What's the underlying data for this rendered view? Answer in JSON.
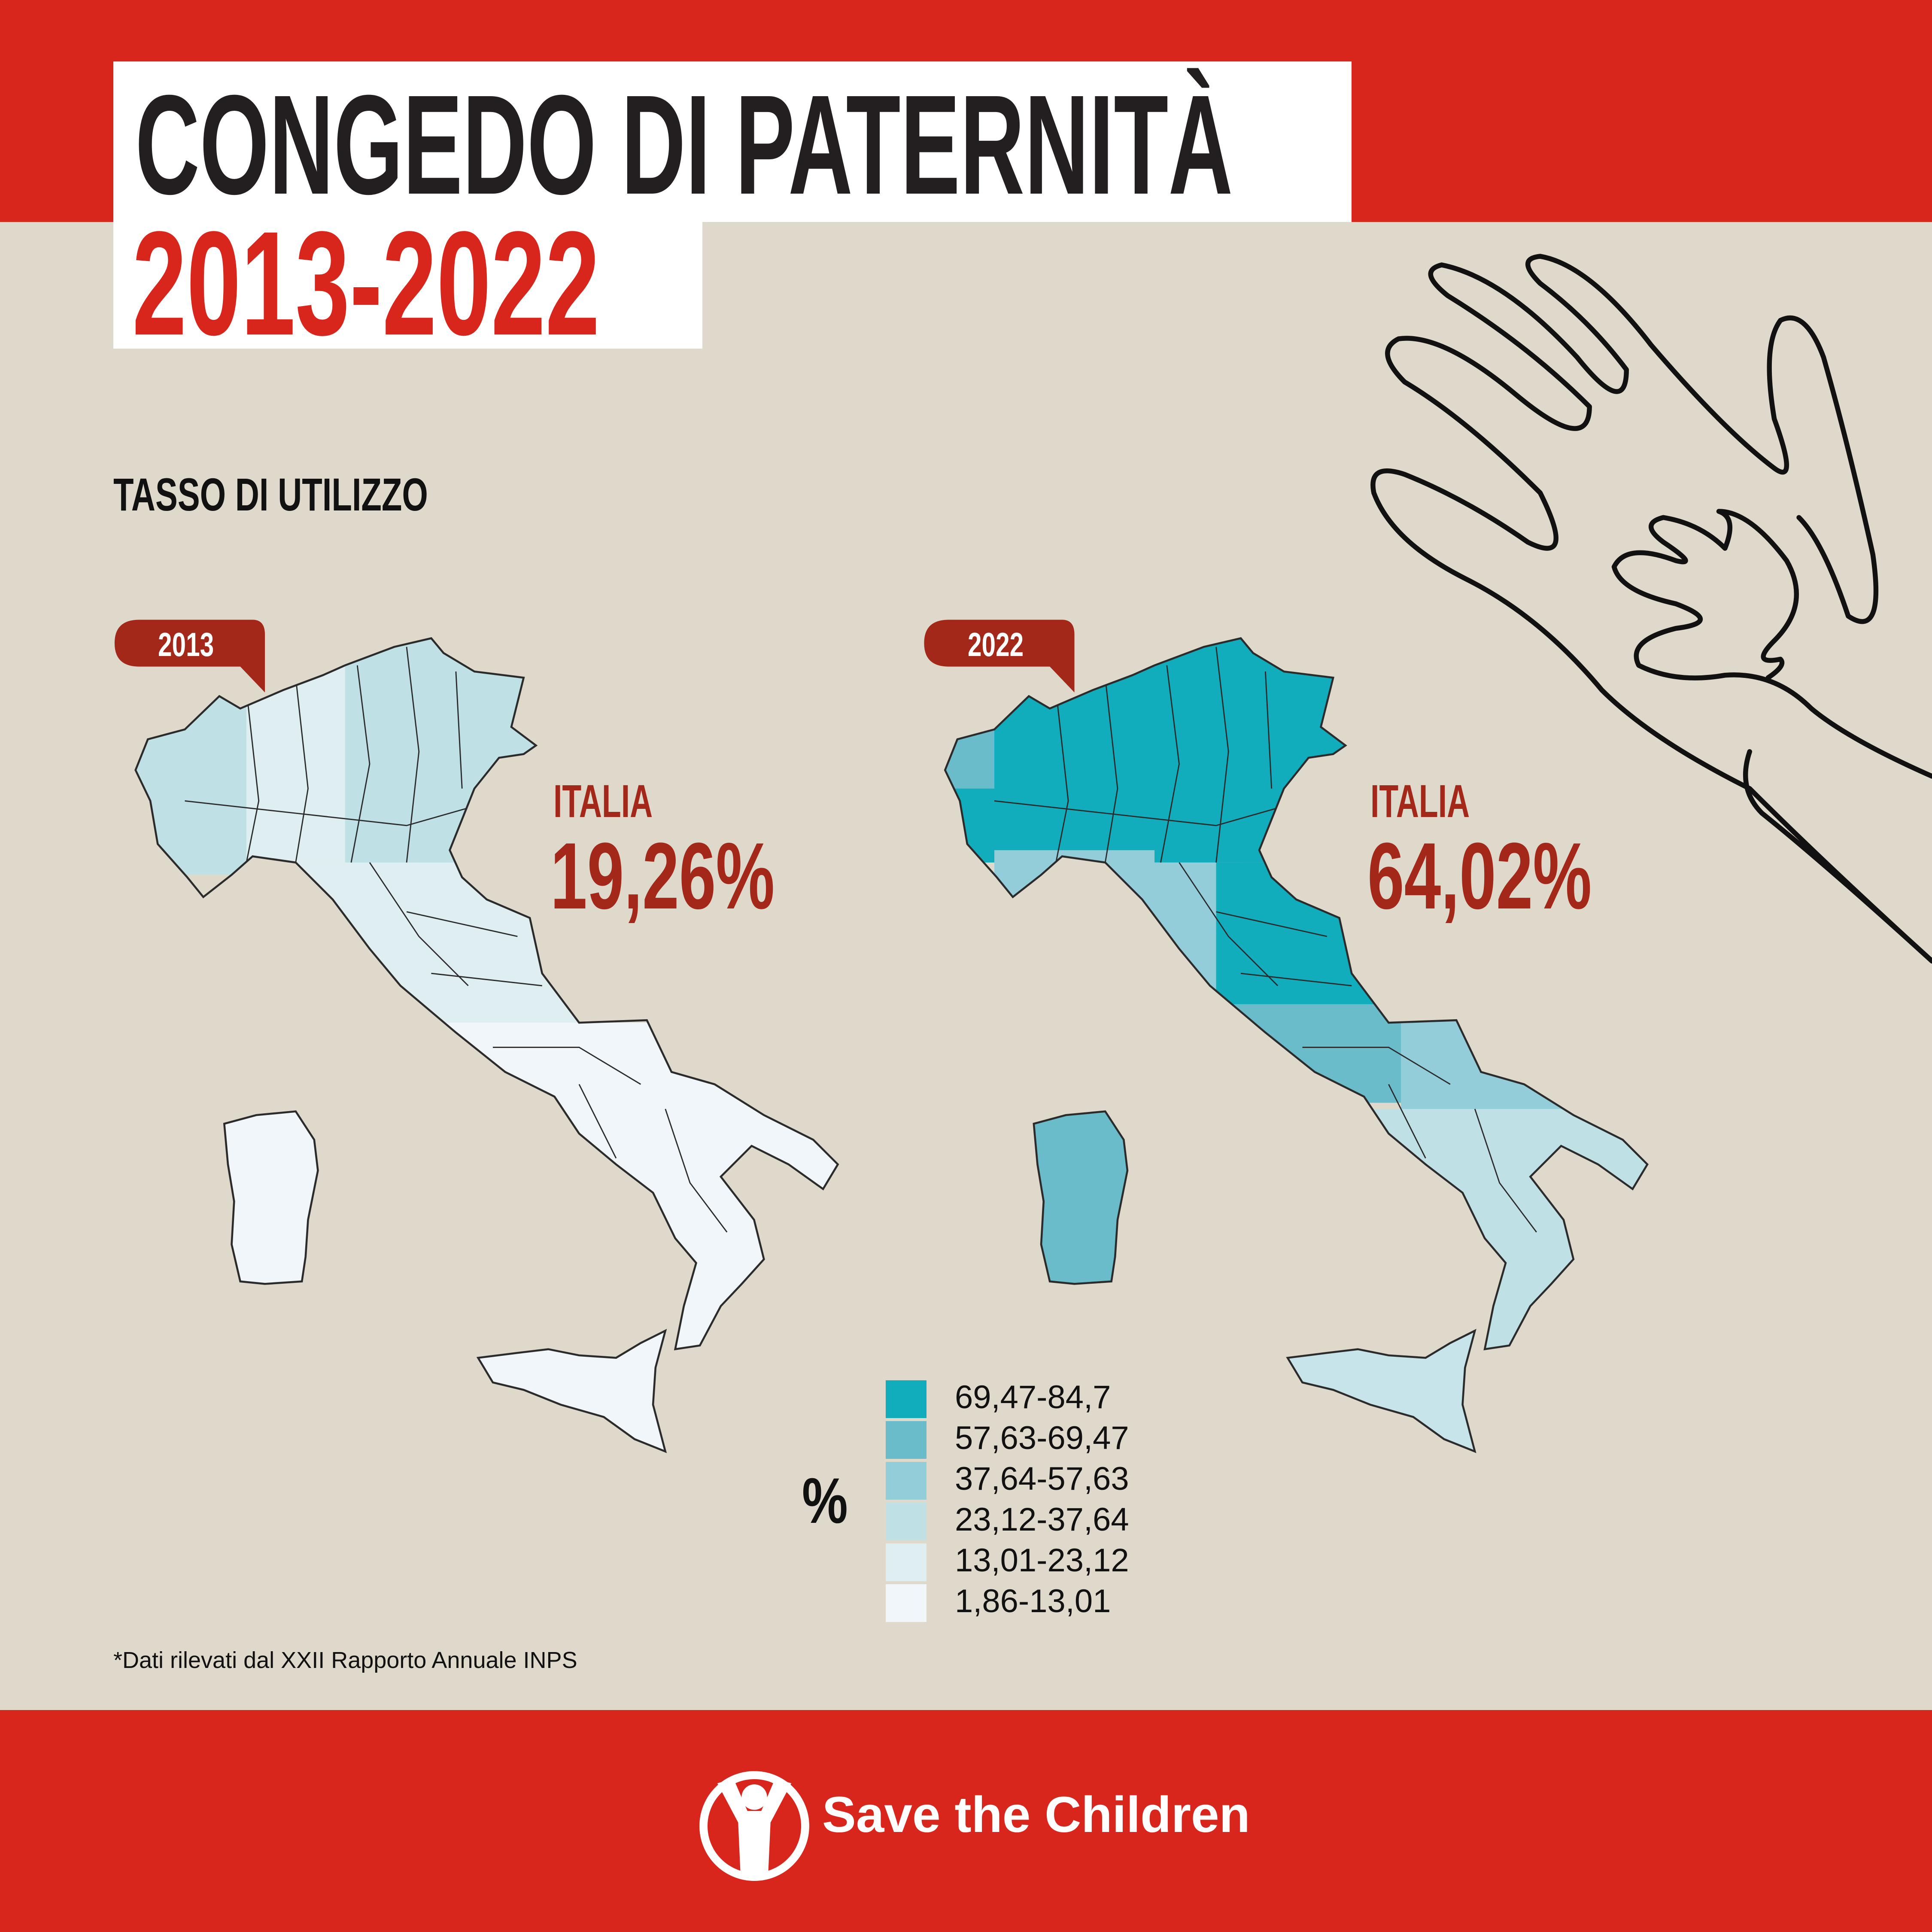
{
  "header": {
    "title": "CONGEDO DI PATERNITÀ",
    "years": "2013-2022",
    "subtitle": "TASSO DI UTILIZZO"
  },
  "maps": [
    {
      "year_label": "2013",
      "italia_label": "ITALIA",
      "italia_value": "19,26%"
    },
    {
      "year_label": "2022",
      "italia_label": "ITALIA",
      "italia_value": "64,02%"
    }
  ],
  "legend": {
    "unit": "%",
    "classes": [
      {
        "label": "69,47-84,7",
        "color": "#12adbc"
      },
      {
        "label": "57,63-69,47",
        "color": "#6bbccb"
      },
      {
        "label": "37,64-57,63",
        "color": "#92cdd9"
      },
      {
        "label": "23,12-37,64",
        "color": "#bfe0e5"
      },
      {
        "label": "13,01-23,12",
        "color": "#dfeef0"
      },
      {
        "label": "1,86-13,01",
        "color": "#f0f6f9"
      }
    ]
  },
  "footnote": "*Dati rilevati dal XXII Rapporto Annuale INPS",
  "footer": {
    "brand": "Save the Children"
  },
  "colors": {
    "brand_red": "#d9261c",
    "accent_dark_red": "#a3281a",
    "background": "#ded9cb"
  }
}
